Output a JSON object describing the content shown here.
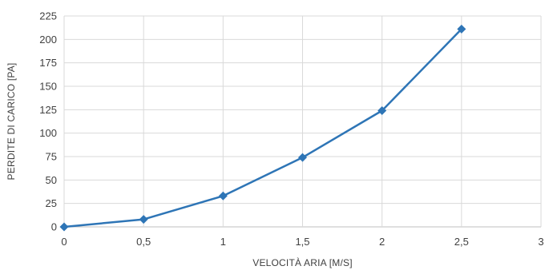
{
  "chart_data": {
    "type": "line",
    "xlabel": "VELOCITÀ ARIA [M/S]",
    "ylabel": "PERDITE DI CARICO [PA]",
    "x": [
      0,
      0.5,
      1,
      1.5,
      2,
      2.5
    ],
    "series": [
      {
        "values": [
          0,
          8,
          33,
          74,
          124,
          211
        ],
        "color": "#2e75b6",
        "marker": "diamond"
      }
    ],
    "xlim": [
      0,
      3
    ],
    "ylim": [
      0,
      225
    ],
    "x_ticks": [
      0,
      0.5,
      1,
      1.5,
      2,
      2.5,
      3
    ],
    "x_tick_labels": [
      "0",
      "0,5",
      "1",
      "1,5",
      "2",
      "2,5",
      "3"
    ],
    "y_ticks": [
      0,
      25,
      50,
      75,
      100,
      125,
      150,
      175,
      200,
      225
    ],
    "y_tick_labels": [
      "0",
      "25",
      "50",
      "75",
      "100",
      "125",
      "150",
      "175",
      "200",
      "225"
    ],
    "grid": true,
    "legend": "none"
  }
}
